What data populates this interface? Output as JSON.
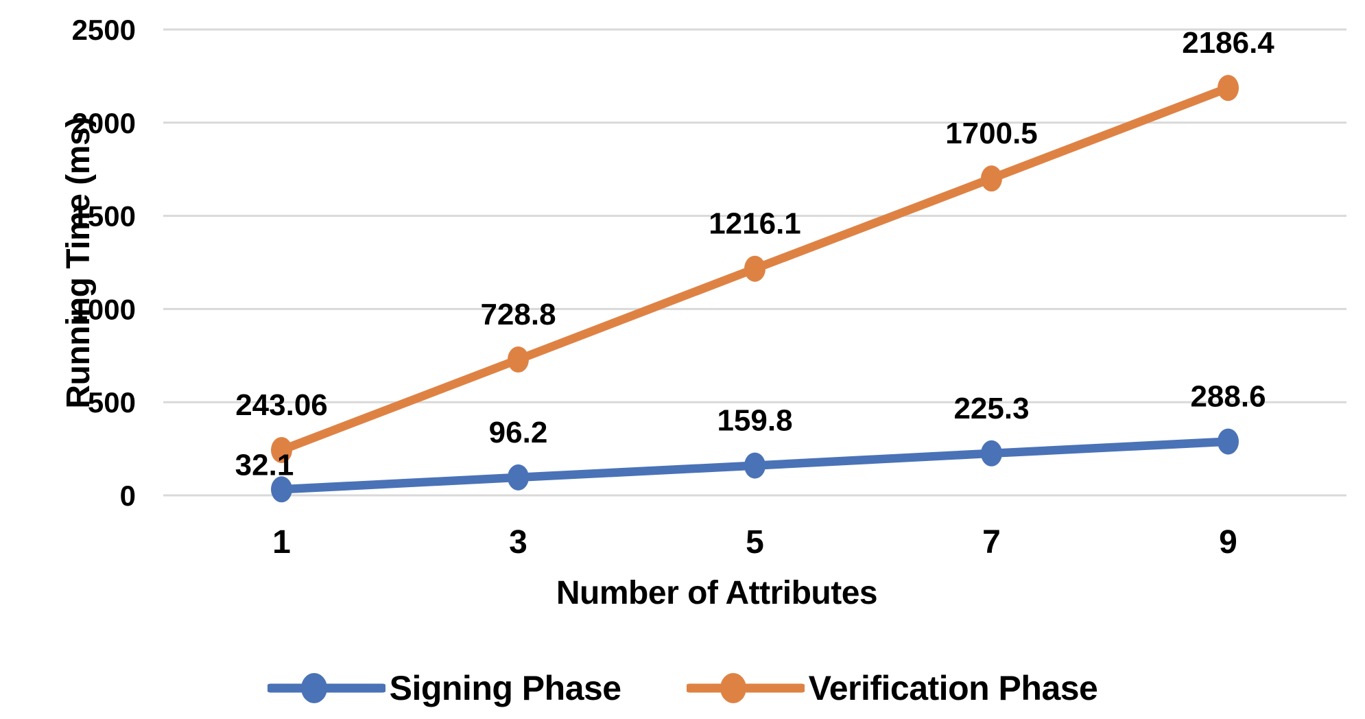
{
  "chart_data": {
    "type": "line",
    "xlabel": "Number of Attributes",
    "ylabel": "Running Time (ms)",
    "x_categories": [
      "1",
      "3",
      "5",
      "7",
      "9"
    ],
    "y_ticks": [
      "0",
      "500",
      "1000",
      "1500",
      "2000",
      "2500"
    ],
    "ylim": [
      0,
      2500
    ],
    "grid": "horizontal",
    "gridline_color": "#D9D9D9",
    "legend_position": "bottom",
    "series": [
      {
        "name": "Signing Phase",
        "color": "#4A72B6",
        "values": [
          32.1,
          96.2,
          159.8,
          225.3,
          288.6
        ],
        "labels": [
          "32.1",
          "96.2",
          "159.8",
          "225.3",
          "288.6"
        ]
      },
      {
        "name": "Verification Phase",
        "color": "#DE8244",
        "values": [
          243.06,
          728.8,
          1216.1,
          1700.5,
          2186.4
        ],
        "labels": [
          "243.06",
          "728.8",
          "1216.1",
          "1700.5",
          "2186.4"
        ]
      }
    ]
  }
}
